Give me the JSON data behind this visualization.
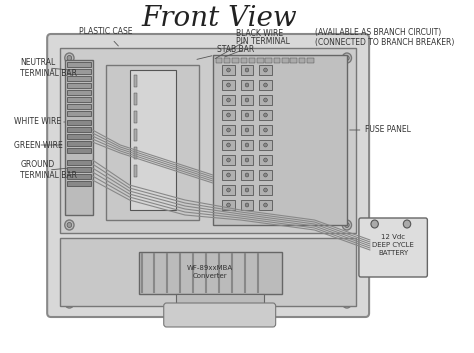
{
  "title": "Front View",
  "title_fontsize": 20,
  "title_font": "serif",
  "bg_color": "#ffffff",
  "border_color": "#555555",
  "text_color": "#333333",
  "labels": {
    "plastic_case": "PLASTIC CASE",
    "neutral_terminal_bar": "NEUTRAL\nTERMINAL BAR",
    "black_wire": "BLACK WIRE",
    "pin_terminal": "PIN TERMINAL",
    "stab_bar": "STAB BAR",
    "available": "(AVAILABLE AS BRANCH CIRCUIT)",
    "connected": "(CONNECTED TO BRANCH BREAKER)",
    "white_wire": "WHITE WIRE",
    "green_wire": "GREEN WIRE",
    "ground_terminal_bar": "GROUND\nTERMINAL BAR",
    "fuse_panel": "FUSE PANEL",
    "battery": "12 Vdc\nDEEP CYCLE\nBATTERY",
    "converter": "WF-89xxMBA\nConverter"
  }
}
